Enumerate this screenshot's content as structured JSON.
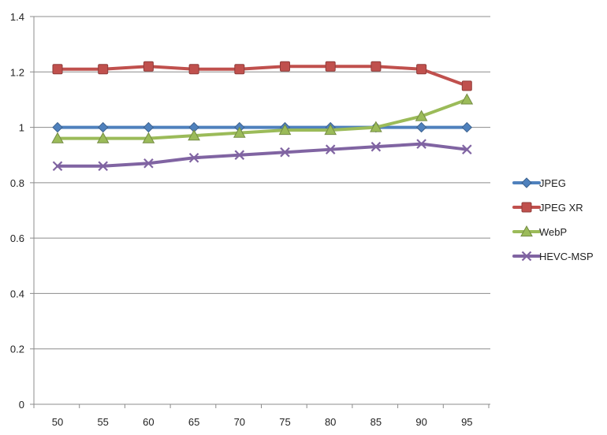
{
  "chart_data": {
    "type": "line",
    "title": "",
    "xlabel": "",
    "ylabel": "",
    "categories": [
      "50",
      "55",
      "60",
      "65",
      "70",
      "75",
      "80",
      "85",
      "90",
      "95"
    ],
    "ylim": [
      0,
      1.4
    ],
    "yticks": [
      "0",
      "0.2",
      "0.4",
      "0.6",
      "0.8",
      "1",
      "1.2",
      "1.4"
    ],
    "grid": "horizontal",
    "legend_position": "right",
    "series": [
      {
        "name": "JPEG",
        "color": "#4F81BD",
        "marker": "diamond",
        "values": [
          1.0,
          1.0,
          1.0,
          1.0,
          1.0,
          1.0,
          1.0,
          1.0,
          1.0,
          1.0
        ]
      },
      {
        "name": "JPEG XR",
        "color": "#C0504D",
        "marker": "square",
        "values": [
          1.21,
          1.21,
          1.22,
          1.21,
          1.21,
          1.22,
          1.22,
          1.22,
          1.21,
          1.15
        ]
      },
      {
        "name": "WebP",
        "color": "#9BBB59",
        "marker": "triangle",
        "values": [
          0.96,
          0.96,
          0.96,
          0.97,
          0.98,
          0.99,
          0.99,
          1.0,
          1.04,
          1.1
        ]
      },
      {
        "name": "HEVC-MSP",
        "color": "#8064A2",
        "marker": "x",
        "values": [
          0.86,
          0.86,
          0.87,
          0.89,
          0.9,
          0.91,
          0.92,
          0.93,
          0.94,
          0.92
        ]
      }
    ]
  }
}
